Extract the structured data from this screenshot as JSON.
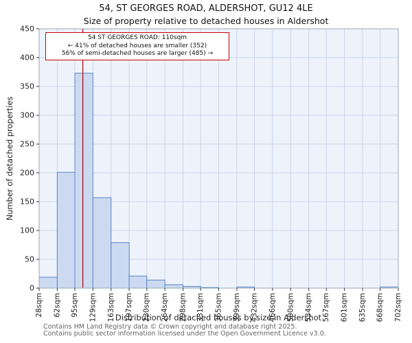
{
  "chart_data": {
    "type": "bar",
    "title": "54, ST GEORGES ROAD, ALDERSHOT, GU12 4LE",
    "subtitle": "Size of property relative to detached houses in Aldershot",
    "xlabel": "Distribution of detached houses by size in Aldershot",
    "ylabel": "Number of detached properties",
    "bin_edges": [
      28,
      62,
      95,
      129,
      163,
      197,
      230,
      264,
      298,
      331,
      365,
      399,
      432,
      466,
      500,
      534,
      567,
      601,
      635,
      668,
      702
    ],
    "tick_labels": [
      "28sqm",
      "62sqm",
      "95sqm",
      "129sqm",
      "163sqm",
      "197sqm",
      "230sqm",
      "264sqm",
      "298sqm",
      "331sqm",
      "365sqm",
      "399sqm",
      "432sqm",
      "466sqm",
      "500sqm",
      "534sqm",
      "567sqm",
      "601sqm",
      "635sqm",
      "668sqm",
      "702sqm"
    ],
    "values": [
      19,
      201,
      373,
      157,
      79,
      21,
      14,
      6,
      3,
      1,
      0,
      2,
      0,
      0,
      0,
      0,
      0,
      0,
      0,
      2
    ],
    "ylim": [
      0,
      450
    ],
    "ytick_step": 50,
    "grid": "on",
    "marker": {
      "value": 110,
      "color": "#aa0000"
    },
    "colors": {
      "bar_fill": "#ccdaf1",
      "bar_edge": "#5b84c4",
      "grid": "#c9d4e8",
      "plot_bg": "#eef3fb",
      "frame": "#9aa5b8",
      "tick": "#333333"
    },
    "annotation": {
      "line1": "54 ST GEORGES ROAD: 110sqm",
      "line2": "← 41% of detached houses are smaller (352)",
      "line3": "56% of semi-detached houses are larger (485) →"
    }
  },
  "footer": {
    "line1": "Contains HM Land Registry data © Crown copyright and database right 2025.",
    "line2": "Contains public sector information licensed under the Open Government Licence v3.0."
  }
}
